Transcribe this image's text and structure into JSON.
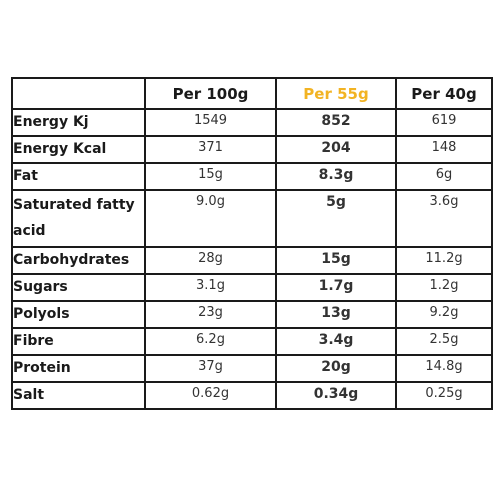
{
  "colors": {
    "accent": "#f2b323",
    "text": "#1a1a1a",
    "border": "#1a1a1a"
  },
  "table": {
    "headers": [
      "",
      "Per 100g",
      "Per 55g",
      "Per 40g"
    ],
    "rows": [
      {
        "label": "Energy Kj",
        "per100": "1549",
        "per55": "852",
        "per40": "619"
      },
      {
        "label": "Energy Kcal",
        "per100": "371",
        "per55": "204",
        "per40": "148"
      },
      {
        "label": "Fat",
        "per100": "15g",
        "per55": "8.3g",
        "per40": "6g"
      },
      {
        "label": "Saturated fatty acid",
        "per100": "9.0g",
        "per55": "5g",
        "per40": "3.6g"
      },
      {
        "label": "Carbohydrates",
        "per100": "28g",
        "per55": "15g",
        "per40": "11.2g"
      },
      {
        "label": "Sugars",
        "per100": "3.1g",
        "per55": "1.7g",
        "per40": "1.2g"
      },
      {
        "label": "Polyols",
        "per100": "23g",
        "per55": "13g",
        "per40": "9.2g"
      },
      {
        "label": "Fibre",
        "per100": "6.2g",
        "per55": "3.4g",
        "per40": "2.5g"
      },
      {
        "label": "Protein",
        "per100": "37g",
        "per55": "20g",
        "per40": "14.8g"
      },
      {
        "label": "Salt",
        "per100": "0.62g",
        "per55": "0.34g",
        "per40": "0.25g"
      }
    ]
  }
}
